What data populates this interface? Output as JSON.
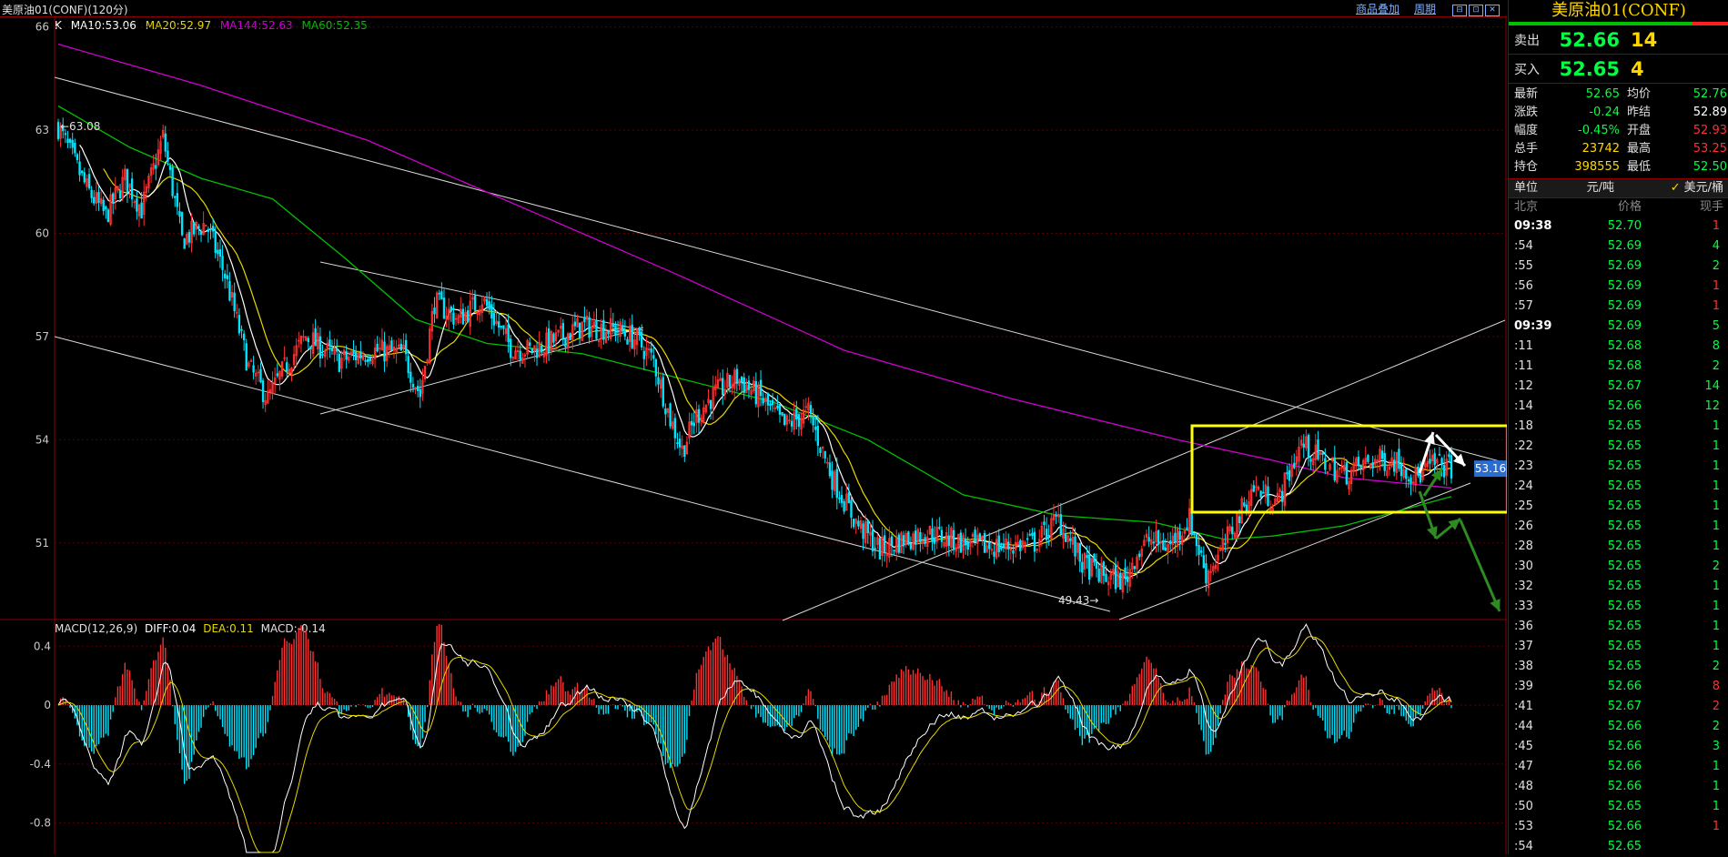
{
  "header": {
    "symbol_label": "美原油01(CONF)(120分)",
    "link_overlay": "商品叠加",
    "link_period": "周期",
    "win_buttons": [
      "⊟",
      "⊡",
      "✕"
    ]
  },
  "legend": {
    "k": "K",
    "ma10": "MA10:53.06",
    "ma20": "MA20:52.97",
    "ma144": "MA144:52.63",
    "ma60": "MA60:52.35"
  },
  "macd_legend": {
    "name": "MACD(12,26,9)",
    "diff": "DIFF:0.04",
    "dea": "DEA:0.11",
    "macd": "MACD:-0.14"
  },
  "colors": {
    "up": "#ff3030",
    "down": "#00e5ff",
    "ma10": "#ffffff",
    "ma20": "#e6d800",
    "ma144": "#d000d0",
    "ma60": "#00c000",
    "box": "#ffff00",
    "arrow_green": "#2e8b22",
    "arrow_white": "#ffffff"
  },
  "chart_data": [
    {
      "type": "candlestick",
      "title": "美原油01(CONF)(120分)",
      "ylim": [
        48.8,
        66.2
      ],
      "y_ticks": [
        51,
        54,
        57,
        60,
        63,
        66
      ],
      "annotations": {
        "high_label": "63.08",
        "low_label": "49.43",
        "current_price": "53.16"
      },
      "series": [
        {
          "name": "MA10",
          "value": 53.06
        },
        {
          "name": "MA20",
          "value": 52.97
        },
        {
          "name": "MA144",
          "value": 52.63
        },
        {
          "name": "MA60",
          "value": 52.35
        }
      ],
      "grid": true
    },
    {
      "type": "bar",
      "title": "MACD(12,26,9)",
      "ylim": [
        -1.0,
        0.55
      ],
      "y_ticks": [
        0.4,
        0,
        -0.4,
        -0.8
      ],
      "y_tick_labels": [
        "0.4",
        "0",
        "-0.4",
        "-0.8"
      ],
      "series": [
        {
          "name": "DIFF",
          "value": 0.04
        },
        {
          "name": "DEA",
          "value": 0.11
        },
        {
          "name": "MACD",
          "value": -0.14
        }
      ]
    }
  ],
  "panel": {
    "title": "美原油01(CONF)",
    "sell": {
      "label": "卖出",
      "price": "52.66",
      "volume": "14"
    },
    "buy": {
      "label": "买入",
      "price": "52.65",
      "volume": "4"
    },
    "stats": [
      {
        "k": "最新",
        "v": "52.65",
        "vc": "green",
        "k2": "均价",
        "v2": "52.76",
        "v2c": "green"
      },
      {
        "k": "涨跌",
        "v": "-0.24",
        "vc": "green",
        "k2": "昨结",
        "v2": "52.89",
        "v2c": "white"
      },
      {
        "k": "幅度",
        "v": "-0.45%",
        "vc": "green",
        "k2": "开盘",
        "v2": "52.93",
        "v2c": "red"
      },
      {
        "k": "总手",
        "v": "23742",
        "vc": "yellow",
        "k2": "最高",
        "v2": "53.25",
        "v2c": "red"
      },
      {
        "k": "持仓",
        "v": "398555",
        "vc": "yellow",
        "k2": "最低",
        "v2": "52.50",
        "v2c": "green"
      }
    ],
    "unit": {
      "label": "单位",
      "opt1": "元/吨",
      "opt2": "美元/桶",
      "check": "✓"
    },
    "ticks_header": {
      "time": "北京",
      "price": "价格",
      "qty": "现手"
    },
    "ticks": [
      {
        "t": "09:38",
        "p": "52.70",
        "q": "1",
        "qc": "red",
        "full": true
      },
      {
        "t": ":54",
        "p": "52.69",
        "q": "4",
        "qc": "green"
      },
      {
        "t": ":55",
        "p": "52.69",
        "q": "2",
        "qc": "green"
      },
      {
        "t": ":56",
        "p": "52.69",
        "q": "1",
        "qc": "red"
      },
      {
        "t": ":57",
        "p": "52.69",
        "q": "1",
        "qc": "red"
      },
      {
        "t": "09:39",
        "p": "52.69",
        "q": "5",
        "qc": "green",
        "full": true
      },
      {
        "t": ":11",
        "p": "52.68",
        "q": "8",
        "qc": "green"
      },
      {
        "t": ":11",
        "p": "52.68",
        "q": "2",
        "qc": "green"
      },
      {
        "t": ":12",
        "p": "52.67",
        "q": "14",
        "qc": "green"
      },
      {
        "t": ":14",
        "p": "52.66",
        "q": "12",
        "qc": "green"
      },
      {
        "t": ":18",
        "p": "52.65",
        "q": "1",
        "qc": "green"
      },
      {
        "t": ":22",
        "p": "52.65",
        "q": "1",
        "qc": "green"
      },
      {
        "t": ":23",
        "p": "52.65",
        "q": "1",
        "qc": "green"
      },
      {
        "t": ":24",
        "p": "52.65",
        "q": "1",
        "qc": "green"
      },
      {
        "t": ":25",
        "p": "52.65",
        "q": "1",
        "qc": "green"
      },
      {
        "t": ":26",
        "p": "52.65",
        "q": "1",
        "qc": "green"
      },
      {
        "t": ":28",
        "p": "52.65",
        "q": "1",
        "qc": "green"
      },
      {
        "t": ":30",
        "p": "52.65",
        "q": "2",
        "qc": "green"
      },
      {
        "t": ":32",
        "p": "52.65",
        "q": "1",
        "qc": "green"
      },
      {
        "t": ":33",
        "p": "52.65",
        "q": "1",
        "qc": "green"
      },
      {
        "t": ":36",
        "p": "52.65",
        "q": "1",
        "qc": "green"
      },
      {
        "t": ":37",
        "p": "52.65",
        "q": "1",
        "qc": "green"
      },
      {
        "t": ":38",
        "p": "52.65",
        "q": "2",
        "qc": "green"
      },
      {
        "t": ":39",
        "p": "52.66",
        "q": "8",
        "qc": "red"
      },
      {
        "t": ":41",
        "p": "52.67",
        "q": "2",
        "qc": "red"
      },
      {
        "t": ":44",
        "p": "52.66",
        "q": "2",
        "qc": "green"
      },
      {
        "t": ":45",
        "p": "52.66",
        "q": "3",
        "qc": "green"
      },
      {
        "t": ":47",
        "p": "52.66",
        "q": "1",
        "qc": "green"
      },
      {
        "t": ":48",
        "p": "52.66",
        "q": "1",
        "qc": "green"
      },
      {
        "t": ":50",
        "p": "52.65",
        "q": "1",
        "qc": "green"
      },
      {
        "t": ":53",
        "p": "52.66",
        "q": "1",
        "qc": "red"
      },
      {
        "t": ":54",
        "p": "52.65",
        "q": "",
        "qc": "green"
      }
    ]
  }
}
